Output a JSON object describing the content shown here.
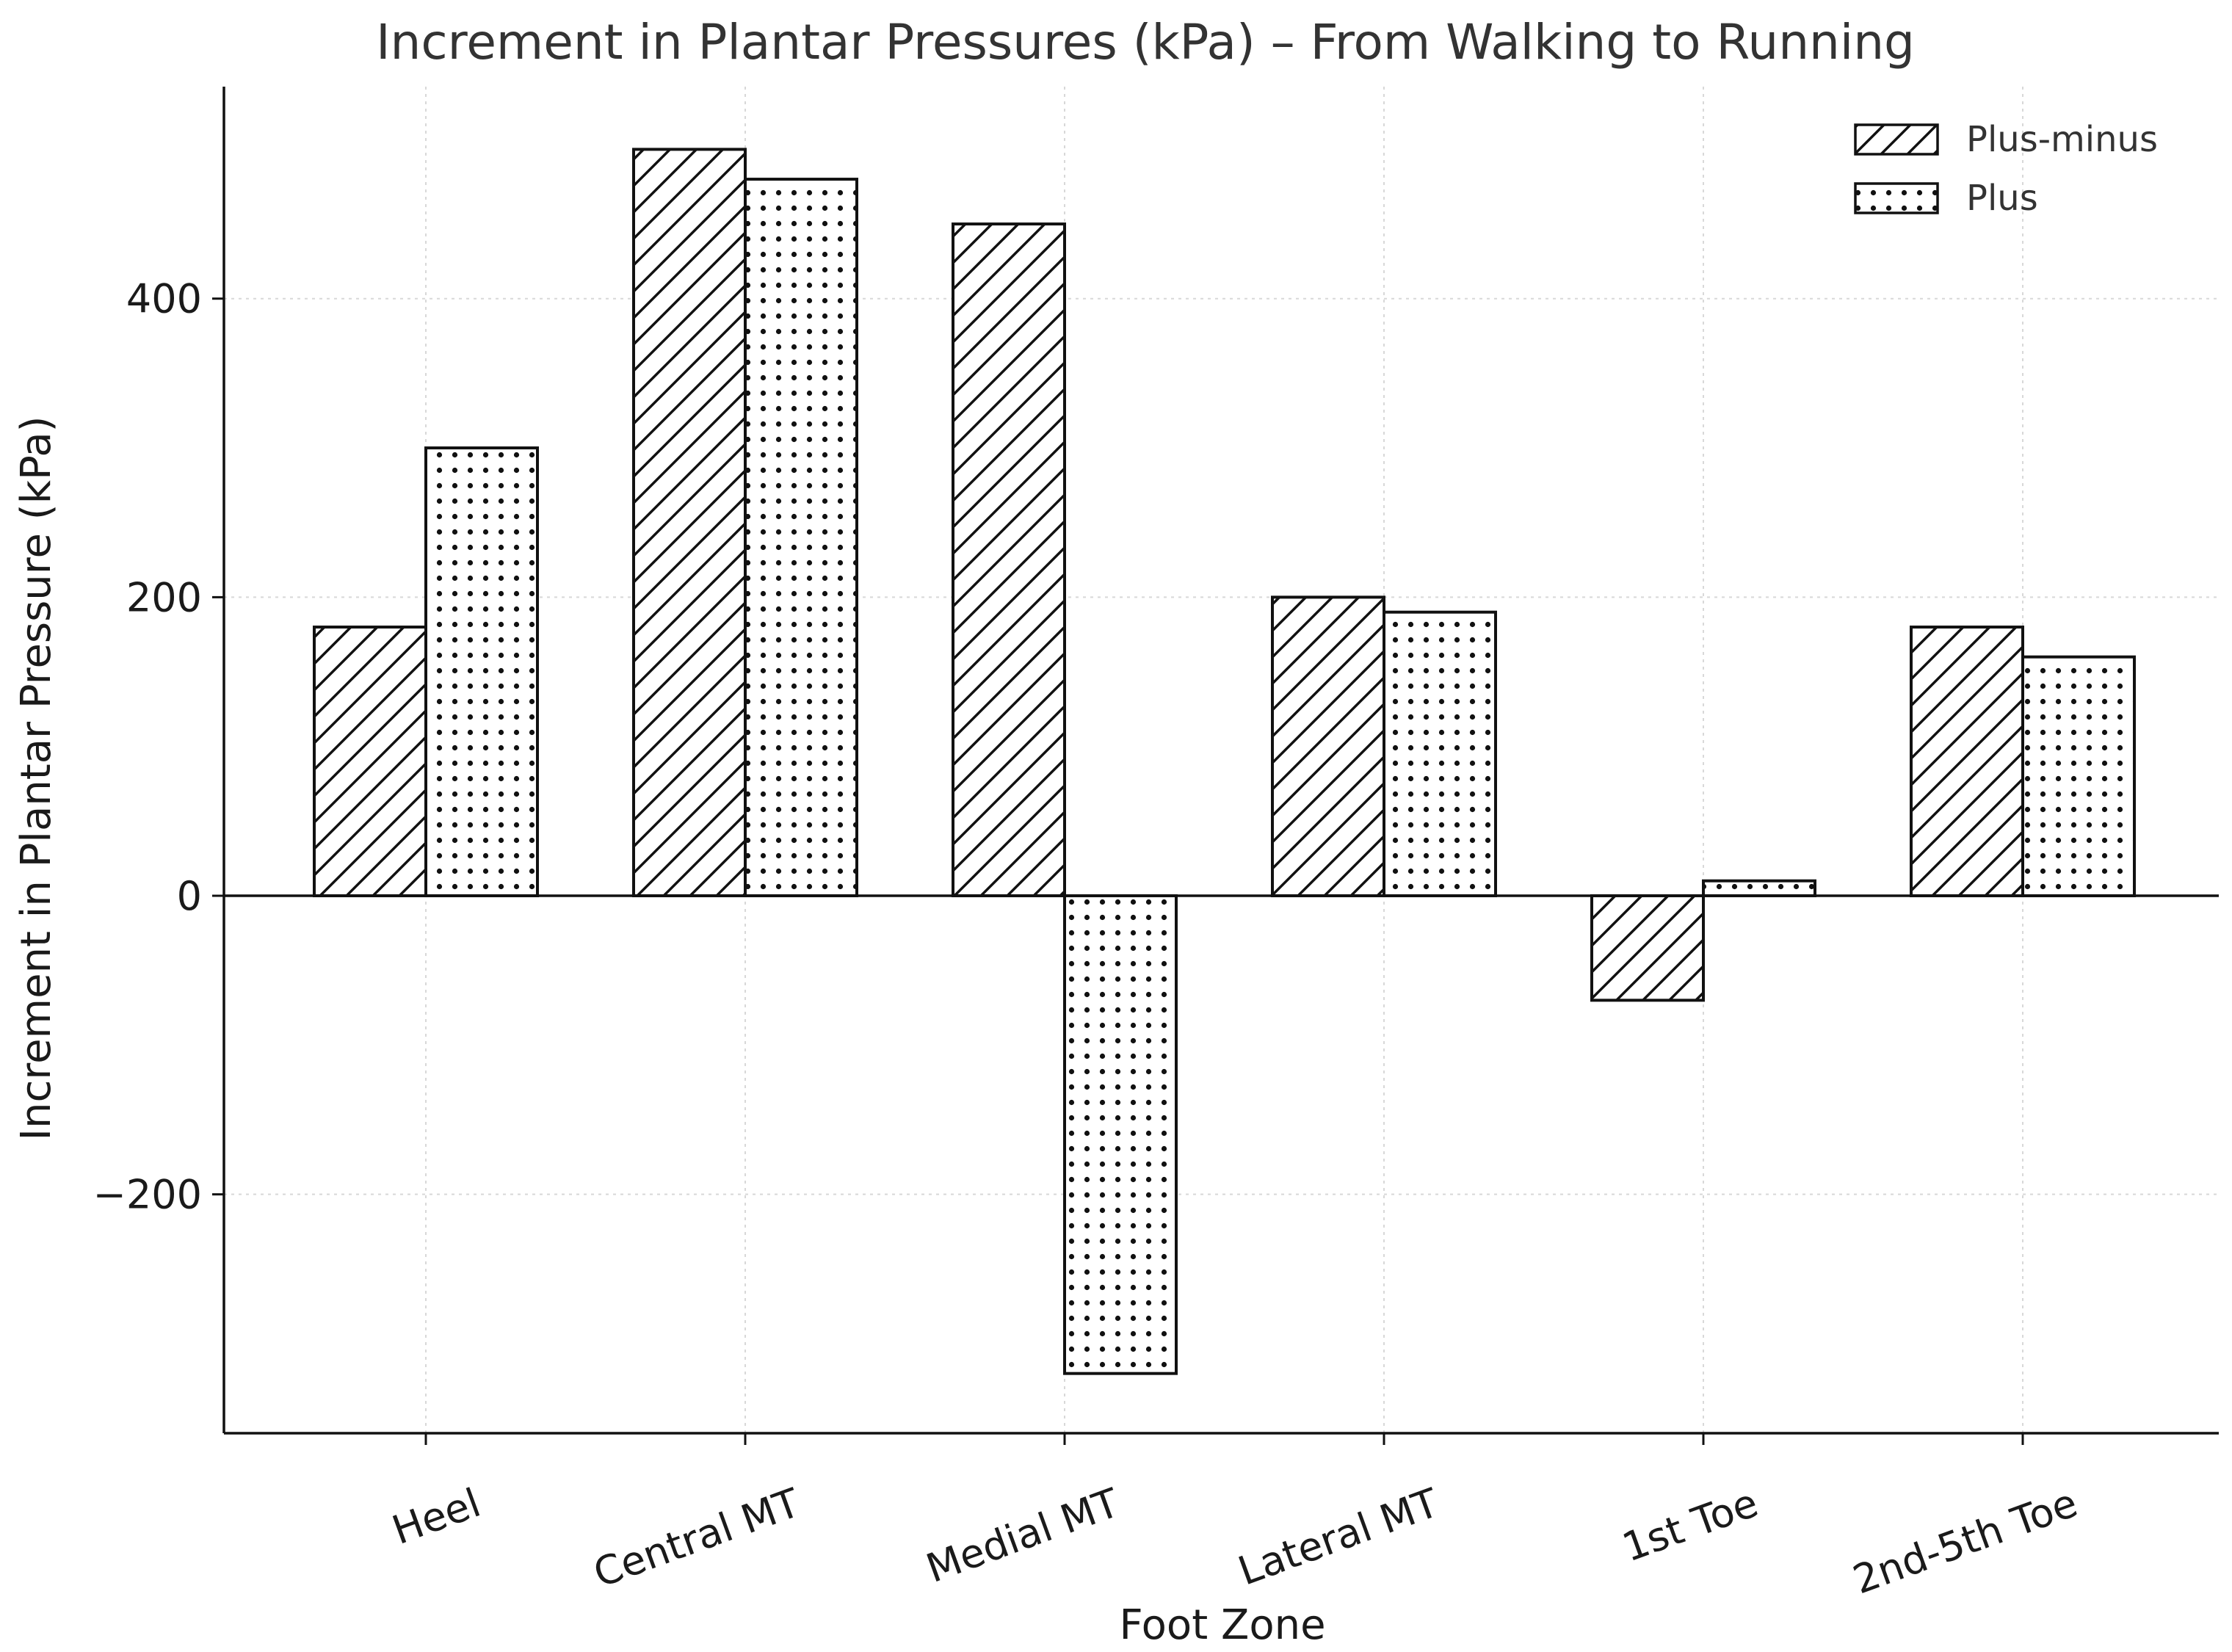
{
  "chart_data": {
    "type": "bar",
    "title": "Increment in Plantar Pressures (kPa) – From Walking to Running",
    "xlabel": "Foot Zone",
    "ylabel": "Increment in Plantar Pressure (kPa)",
    "categories": [
      "Heel",
      "Central MT",
      "Medial MT",
      "Lateral MT",
      "1st Toe",
      "2nd-5th Toe"
    ],
    "series": [
      {
        "name": "Plus-minus",
        "pattern": "hatch",
        "values": [
          180,
          500,
          450,
          200,
          -70,
          180
        ]
      },
      {
        "name": "Plus",
        "pattern": "dots",
        "values": [
          300,
          480,
          -320,
          190,
          10,
          160
        ]
      }
    ],
    "ylim": [
      -360,
      542
    ],
    "yticks": [
      -200,
      0,
      200,
      400
    ],
    "ytick_labels": [
      "−200",
      "0",
      "200",
      "400"
    ],
    "grid": true,
    "legend_position": "top-right",
    "colors": {
      "bar_fill": "#ffffff",
      "bar_edge": "#111111",
      "text": "#1a1a1a",
      "title": "#333333",
      "grid": "#d8d8d8"
    }
  }
}
